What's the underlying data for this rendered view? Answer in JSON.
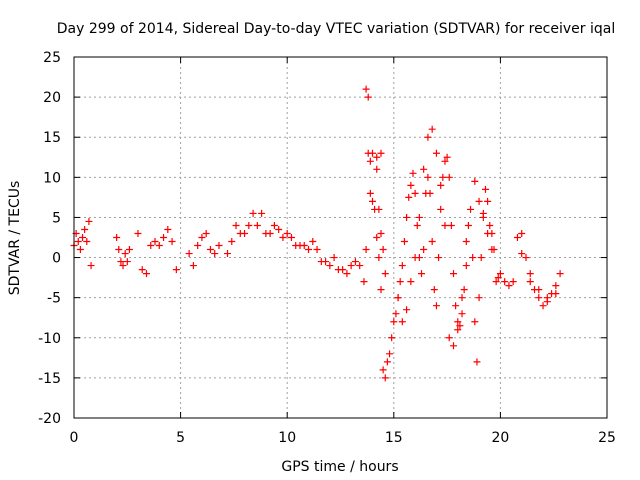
{
  "chart_data": {
    "type": "scatter",
    "title": "Day 299 of 2014, Sidereal Day-to-day VTEC variation (SDTVAR) for receiver iqal",
    "xlabel": "GPS time / hours",
    "ylabel": "SDTVAR / TECUs",
    "xlim": [
      0,
      25
    ],
    "ylim": [
      -20,
      25
    ],
    "xticks": [
      "0",
      "5",
      "10",
      "15",
      "20",
      "25"
    ],
    "yticks": [
      "-20",
      "-15",
      "-10",
      "-5",
      "0",
      "5",
      "10",
      "15",
      "20",
      "25"
    ],
    "grid": true,
    "marker": "+",
    "series": [
      {
        "name": "SDTVAR",
        "color": "#ff0000",
        "x": [
          0.0,
          0.1,
          0.2,
          0.3,
          0.4,
          0.5,
          0.6,
          0.7,
          0.8,
          2.0,
          2.1,
          2.2,
          2.3,
          2.4,
          2.5,
          2.6,
          3.0,
          3.2,
          3.4,
          3.6,
          3.8,
          4.0,
          4.2,
          4.4,
          4.6,
          4.8,
          5.4,
          5.6,
          5.8,
          6.0,
          6.2,
          6.4,
          6.6,
          6.8,
          7.2,
          7.4,
          7.6,
          7.8,
          8.0,
          8.2,
          8.4,
          8.6,
          8.8,
          9.0,
          9.2,
          9.4,
          9.6,
          9.8,
          10.0,
          10.2,
          10.4,
          10.6,
          10.8,
          11.0,
          11.2,
          11.4,
          11.6,
          11.8,
          12.0,
          12.2,
          12.4,
          12.6,
          12.8,
          13.0,
          13.2,
          13.4,
          13.6,
          13.7,
          13.8,
          13.9,
          14.0,
          14.1,
          14.2,
          14.3,
          14.4,
          14.5,
          14.6,
          14.7,
          14.8,
          14.9,
          15.0,
          15.1,
          15.2,
          15.3,
          15.4,
          15.5,
          15.6,
          15.7,
          15.8,
          15.9,
          16.0,
          16.1,
          16.2,
          16.3,
          16.4,
          16.5,
          16.6,
          16.7,
          16.8,
          16.9,
          17.0,
          17.1,
          17.2,
          17.3,
          17.4,
          17.5,
          17.6,
          17.7,
          17.8,
          17.9,
          18.0,
          18.1,
          18.2,
          18.3,
          18.4,
          18.5,
          18.6,
          18.7,
          18.8,
          18.9,
          19.0,
          19.1,
          19.2,
          19.3,
          19.4,
          19.5,
          19.6,
          19.7,
          19.8,
          19.9,
          20.0,
          20.2,
          20.4,
          20.6,
          20.8,
          21.0,
          21.2,
          21.4,
          21.6,
          21.8,
          22.0,
          22.2,
          22.4,
          22.6,
          22.8,
          13.7,
          13.8,
          13.9,
          14.0,
          14.2,
          14.4,
          14.2,
          14.3,
          14.4,
          14.5,
          14.6,
          16.6,
          16.8,
          17.0,
          17.2,
          17.4,
          15.2,
          15.4,
          15.6,
          15.8,
          16.0,
          16.2,
          16.4,
          18.8,
          19.0,
          19.2,
          19.4,
          19.6,
          17.6,
          17.8,
          18.0,
          18.2,
          18.4,
          21.0,
          21.4,
          21.8,
          22.2,
          22.6
        ],
        "y": [
          1.5,
          3.0,
          2.0,
          1.0,
          2.5,
          3.5,
          2.0,
          4.5,
          -1.0,
          2.5,
          1.0,
          -0.5,
          -1.0,
          0.5,
          -0.5,
          1.0,
          3.0,
          -1.5,
          -2.0,
          1.5,
          2.0,
          1.5,
          2.5,
          3.5,
          2.0,
          -1.5,
          0.5,
          -1.0,
          1.5,
          2.5,
          3.0,
          1.0,
          0.5,
          1.5,
          0.5,
          2.0,
          4.0,
          3.0,
          3.0,
          4.0,
          5.5,
          4.0,
          5.5,
          3.0,
          3.0,
          4.0,
          3.5,
          2.5,
          3.0,
          2.5,
          1.5,
          1.5,
          1.5,
          1.0,
          2.0,
          1.0,
          -0.5,
          -0.5,
          -1.0,
          0.0,
          -1.5,
          -1.5,
          -2.0,
          -1.0,
          -0.5,
          -1.0,
          -3.0,
          1.0,
          13.0,
          8.0,
          7.0,
          6.0,
          2.5,
          0.0,
          -4.0,
          -14.0,
          -15.0,
          -13.0,
          -12.0,
          -10.0,
          -8.0,
          -7.0,
          -5.0,
          -3.0,
          -1.0,
          2.0,
          5.0,
          7.5,
          9.0,
          10.5,
          8.0,
          4.0,
          0.0,
          -2.0,
          1.0,
          8.0,
          10.0,
          8.0,
          2.0,
          -4.0,
          -6.0,
          0.0,
          6.0,
          10.0,
          12.0,
          12.5,
          10.0,
          4.0,
          -2.0,
          -6.0,
          -8.0,
          -8.5,
          -7.0,
          -4.0,
          2.0,
          4.0,
          6.0,
          0.0,
          -8.0,
          -13.0,
          -5.0,
          0.0,
          5.5,
          8.5,
          7.0,
          4.0,
          3.0,
          1.0,
          -3.0,
          -2.5,
          -2.0,
          -3.0,
          -3.5,
          -3.0,
          2.5,
          3.0,
          0.0,
          -3.0,
          -4.0,
          -5.0,
          -6.0,
          -5.5,
          -4.5,
          -3.5,
          -2.0,
          21.0,
          20.0,
          12.0,
          13.0,
          12.5,
          13.0,
          11.0,
          6.0,
          3.0,
          1.0,
          -2.0,
          15.0,
          16.0,
          13.0,
          9.0,
          4.0,
          -5.0,
          -8.0,
          -6.5,
          -3.0,
          0.0,
          5.0,
          11.0,
          9.5,
          7.0,
          5.0,
          3.0,
          1.0,
          -10.0,
          -11.0,
          -9.0,
          -5.0,
          -1.0,
          0.5,
          -2.0,
          -4.0,
          -5.0,
          -4.5
        ]
      }
    ]
  }
}
